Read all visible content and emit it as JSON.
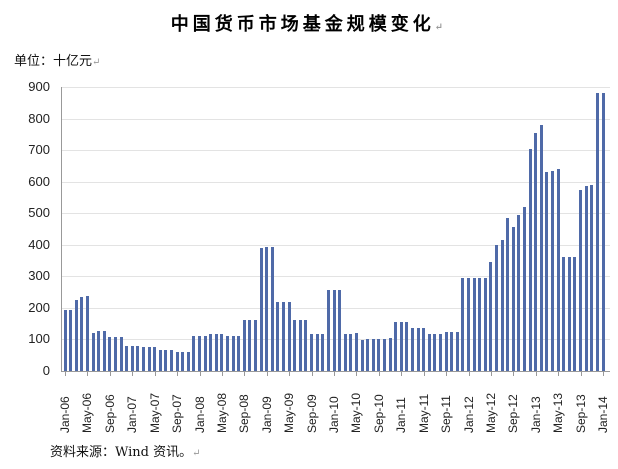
{
  "header": {
    "title": "中国货币市场基金规模变化",
    "unit_label": "单位：十亿元"
  },
  "footer": {
    "source": "资料来源：Wind 资讯。"
  },
  "chart_data": {
    "type": "bar",
    "title": "中国货币市场基金规模变化",
    "xlabel": "",
    "ylabel": "单位：十亿元",
    "ylim": [
      0,
      900
    ],
    "yticks": [
      0,
      100,
      200,
      300,
      400,
      500,
      600,
      700,
      800,
      900
    ],
    "grid": true,
    "legend": null,
    "bar_color": "#4f6aa8",
    "x_tick_labels": [
      "Jan-06",
      "May-06",
      "Sep-06",
      "Jan-07",
      "May-07",
      "Sep-07",
      "Jan-08",
      "May-08",
      "Sep-08",
      "Jan-09",
      "May-09",
      "Sep-09",
      "Jan-10",
      "May-10",
      "Sep-10",
      "Jan-11",
      "May-11",
      "Sep-11",
      "Jan-12",
      "May-12",
      "Sep-12",
      "Jan-13",
      "May-13",
      "Sep-13",
      "Jan-14"
    ],
    "categories_start": "Jan-06",
    "categories_end": "Jan-14",
    "frequency": "monthly",
    "values": [
      193,
      193,
      225,
      235,
      238,
      122,
      127,
      128,
      107,
      107,
      107,
      78,
      78,
      78,
      75,
      75,
      75,
      65,
      65,
      65,
      60,
      60,
      60,
      110,
      110,
      110,
      118,
      118,
      118,
      110,
      110,
      110,
      162,
      162,
      162,
      390,
      392,
      392,
      220,
      220,
      220,
      162,
      162,
      162,
      118,
      118,
      118,
      258,
      258,
      258,
      116,
      116,
      120,
      98,
      100,
      100,
      100,
      100,
      105,
      155,
      155,
      155,
      135,
      135,
      135,
      117,
      117,
      117,
      125,
      125,
      125,
      295,
      295,
      295,
      295,
      295,
      345,
      400,
      415,
      485,
      455,
      495,
      520,
      705,
      755,
      780,
      630,
      635,
      640,
      360,
      360,
      360,
      575,
      585,
      590,
      880,
      880
    ],
    "source": "Wind 资讯"
  }
}
